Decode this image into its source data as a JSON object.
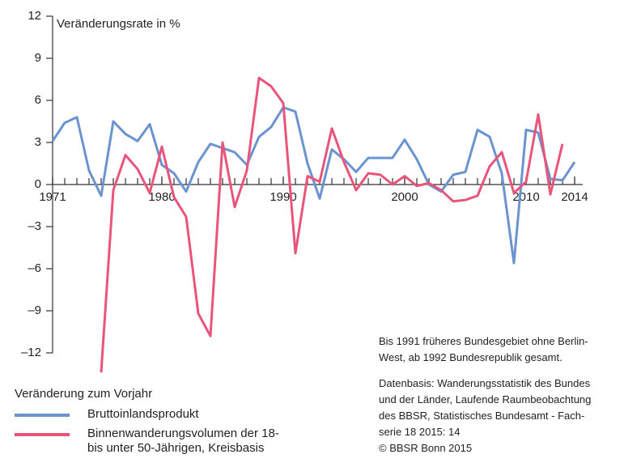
{
  "chart_data": {
    "type": "line",
    "y_label": "Veränderungsrate in %",
    "x": [
      1971,
      1972,
      1973,
      1974,
      1975,
      1976,
      1977,
      1978,
      1979,
      1980,
      1981,
      1982,
      1983,
      1984,
      1985,
      1986,
      1987,
      1988,
      1989,
      1990,
      1991,
      1992,
      1993,
      1994,
      1995,
      1996,
      1997,
      1998,
      1999,
      2000,
      2001,
      2002,
      2003,
      2004,
      2005,
      2006,
      2007,
      2008,
      2009,
      2010,
      2011,
      2012,
      2013,
      2014
    ],
    "xlim": [
      1971,
      2014
    ],
    "xticks": [
      1971,
      1980,
      1990,
      2000,
      2010,
      2014
    ],
    "ylim": [
      -12,
      12
    ],
    "yticks": [
      {
        "value": -12,
        "label": "–12"
      },
      {
        "value": -9,
        "label": "–9"
      },
      {
        "value": -6,
        "label": "–6"
      },
      {
        "value": -3,
        "label": "–3"
      },
      0,
      3,
      6,
      9,
      12
    ],
    "legend_title": "Veränderung zum Vorjahr",
    "series": [
      {
        "name": "Bruttoinlandsprodukt",
        "color": "#6a93d0",
        "values": [
          3.1,
          4.4,
          4.8,
          1.0,
          -0.8,
          4.5,
          3.6,
          3.1,
          4.3,
          1.4,
          0.8,
          -0.5,
          1.6,
          2.9,
          2.6,
          2.3,
          1.4,
          3.4,
          4.1,
          5.5,
          5.2,
          1.5,
          -1.0,
          2.5,
          1.8,
          0.9,
          1.9,
          1.9,
          1.9,
          3.2,
          1.8,
          0.0,
          -0.5,
          0.7,
          0.9,
          3.9,
          3.4,
          0.8,
          -5.6,
          3.9,
          3.7,
          0.4,
          0.3,
          1.6
        ]
      },
      {
        "name": "Binnenwanderungsvolumen der 18- bis unter 50-Jährigen, Kreisbasis",
        "color": "#e9557a",
        "values": [
          null,
          null,
          null,
          null,
          -13.4,
          -0.4,
          2.1,
          1.1,
          -0.6,
          2.7,
          -0.9,
          -2.3,
          -9.2,
          -10.8,
          3.0,
          -1.6,
          1.0,
          7.6,
          7.0,
          5.8,
          -4.9,
          0.6,
          0.2,
          4.0,
          1.6,
          -0.4,
          0.8,
          0.7,
          0.0,
          0.6,
          -0.1,
          0.1,
          -0.4,
          -1.2,
          -1.1,
          -0.8,
          1.3,
          2.3,
          -0.6,
          0.2,
          5.0,
          -0.7,
          2.9,
          null
        ]
      }
    ],
    "notes": [
      [
        "Bis 1991 früheres Bundesgebiet ohne Berlin-",
        "West, ab 1992 Bundesrepublik gesamt."
      ],
      [
        "Datenbasis: Wanderungsstatistik des Bundes",
        "und der Länder, Laufende Raumbeobachtung",
        "des BBSR, Statistisches Bundesamt - Fach-",
        "serie 18 2015: 14",
        "© BBSR Bonn 2015"
      ]
    ]
  }
}
